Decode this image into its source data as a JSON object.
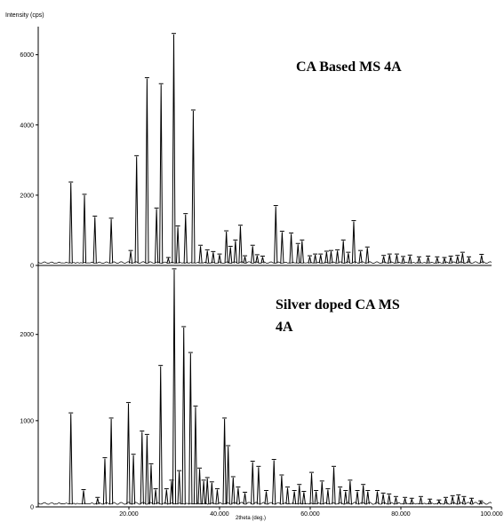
{
  "y_axis_label": "Intensity (cps)",
  "x_axis_label": "2theta (deg.)",
  "chart_data": [
    {
      "type": "line",
      "label": "CA Based MS 4A",
      "x_range": [
        0,
        100
      ],
      "y_range": [
        0,
        6800
      ],
      "y_ticks": [
        "0",
        "2000",
        "4000",
        "6000"
      ],
      "peaks": [
        {
          "x": 7.2,
          "y": 2350
        },
        {
          "x": 10.2,
          "y": 2000
        },
        {
          "x": 12.5,
          "y": 1380
        },
        {
          "x": 16.1,
          "y": 1320
        },
        {
          "x": 20.4,
          "y": 400
        },
        {
          "x": 21.7,
          "y": 3100
        },
        {
          "x": 24.0,
          "y": 5320
        },
        {
          "x": 26.1,
          "y": 1610
        },
        {
          "x": 27.1,
          "y": 5150
        },
        {
          "x": 28.7,
          "y": 200
        },
        {
          "x": 29.9,
          "y": 6580
        },
        {
          "x": 30.8,
          "y": 1100
        },
        {
          "x": 32.5,
          "y": 1450
        },
        {
          "x": 34.2,
          "y": 4400
        },
        {
          "x": 35.8,
          "y": 550
        },
        {
          "x": 37.3,
          "y": 420
        },
        {
          "x": 38.6,
          "y": 370
        },
        {
          "x": 40.0,
          "y": 300
        },
        {
          "x": 41.5,
          "y": 960
        },
        {
          "x": 42.4,
          "y": 520
        },
        {
          "x": 43.5,
          "y": 700
        },
        {
          "x": 44.6,
          "y": 1120
        },
        {
          "x": 45.6,
          "y": 250
        },
        {
          "x": 47.3,
          "y": 550
        },
        {
          "x": 48.3,
          "y": 280
        },
        {
          "x": 49.5,
          "y": 240
        },
        {
          "x": 52.4,
          "y": 1680
        },
        {
          "x": 53.8,
          "y": 950
        },
        {
          "x": 55.8,
          "y": 900
        },
        {
          "x": 57.3,
          "y": 600
        },
        {
          "x": 58.2,
          "y": 700
        },
        {
          "x": 59.9,
          "y": 250
        },
        {
          "x": 61.1,
          "y": 300
        },
        {
          "x": 62.3,
          "y": 300
        },
        {
          "x": 63.6,
          "y": 380
        },
        {
          "x": 64.6,
          "y": 400
        },
        {
          "x": 66.0,
          "y": 420
        },
        {
          "x": 67.3,
          "y": 700
        },
        {
          "x": 68.4,
          "y": 350
        },
        {
          "x": 69.6,
          "y": 1250
        },
        {
          "x": 71.1,
          "y": 400
        },
        {
          "x": 72.6,
          "y": 500
        },
        {
          "x": 76.2,
          "y": 260
        },
        {
          "x": 77.5,
          "y": 300
        },
        {
          "x": 79.1,
          "y": 300
        },
        {
          "x": 80.5,
          "y": 230
        },
        {
          "x": 82.0,
          "y": 270
        },
        {
          "x": 84.0,
          "y": 220
        },
        {
          "x": 86.0,
          "y": 240
        },
        {
          "x": 88.0,
          "y": 220
        },
        {
          "x": 89.6,
          "y": 200
        },
        {
          "x": 91.0,
          "y": 240
        },
        {
          "x": 92.5,
          "y": 260
        },
        {
          "x": 93.6,
          "y": 350
        },
        {
          "x": 95.0,
          "y": 220
        },
        {
          "x": 97.8,
          "y": 290
        }
      ]
    },
    {
      "type": "line",
      "label": "Silver doped CA MS 4A",
      "x_range": [
        0,
        100
      ],
      "y_range": [
        0,
        2800
      ],
      "x_ticks": [
        "20.000",
        "40.000",
        "60.000",
        "80.000",
        "100.000"
      ],
      "y_ticks": [
        "0",
        "1000",
        "2000"
      ],
      "peaks": [
        {
          "x": 7.2,
          "y": 1080
        },
        {
          "x": 10.0,
          "y": 190
        },
        {
          "x": 13.1,
          "y": 100
        },
        {
          "x": 14.7,
          "y": 560
        },
        {
          "x": 16.1,
          "y": 1020
        },
        {
          "x": 19.9,
          "y": 1200
        },
        {
          "x": 21.0,
          "y": 600
        },
        {
          "x": 22.9,
          "y": 870
        },
        {
          "x": 24.0,
          "y": 830
        },
        {
          "x": 24.9,
          "y": 490
        },
        {
          "x": 25.9,
          "y": 200
        },
        {
          "x": 27.0,
          "y": 1630
        },
        {
          "x": 28.3,
          "y": 200
        },
        {
          "x": 29.4,
          "y": 300
        },
        {
          "x": 30.0,
          "y": 2750
        },
        {
          "x": 31.1,
          "y": 410
        },
        {
          "x": 32.1,
          "y": 2080
        },
        {
          "x": 33.6,
          "y": 1780
        },
        {
          "x": 34.7,
          "y": 1160
        },
        {
          "x": 35.6,
          "y": 440
        },
        {
          "x": 36.5,
          "y": 300
        },
        {
          "x": 37.3,
          "y": 330
        },
        {
          "x": 38.3,
          "y": 280
        },
        {
          "x": 39.5,
          "y": 200
        },
        {
          "x": 41.1,
          "y": 1020
        },
        {
          "x": 41.9,
          "y": 700
        },
        {
          "x": 43.0,
          "y": 340
        },
        {
          "x": 44.1,
          "y": 220
        },
        {
          "x": 45.6,
          "y": 160
        },
        {
          "x": 47.3,
          "y": 520
        },
        {
          "x": 48.6,
          "y": 460
        },
        {
          "x": 50.3,
          "y": 180
        },
        {
          "x": 52.0,
          "y": 540
        },
        {
          "x": 53.7,
          "y": 360
        },
        {
          "x": 55.0,
          "y": 220
        },
        {
          "x": 56.5,
          "y": 180
        },
        {
          "x": 57.6,
          "y": 250
        },
        {
          "x": 58.6,
          "y": 170
        },
        {
          "x": 60.3,
          "y": 390
        },
        {
          "x": 61.3,
          "y": 180
        },
        {
          "x": 62.6,
          "y": 290
        },
        {
          "x": 63.9,
          "y": 200
        },
        {
          "x": 65.2,
          "y": 460
        },
        {
          "x": 66.6,
          "y": 220
        },
        {
          "x": 67.8,
          "y": 180
        },
        {
          "x": 68.8,
          "y": 300
        },
        {
          "x": 70.4,
          "y": 180
        },
        {
          "x": 71.7,
          "y": 250
        },
        {
          "x": 72.7,
          "y": 180
        },
        {
          "x": 74.8,
          "y": 180
        },
        {
          "x": 76.1,
          "y": 150
        },
        {
          "x": 77.4,
          "y": 140
        },
        {
          "x": 78.9,
          "y": 110
        },
        {
          "x": 80.9,
          "y": 100
        },
        {
          "x": 82.4,
          "y": 90
        },
        {
          "x": 84.4,
          "y": 110
        },
        {
          "x": 86.4,
          "y": 80
        },
        {
          "x": 88.4,
          "y": 70
        },
        {
          "x": 89.9,
          "y": 100
        },
        {
          "x": 91.4,
          "y": 120
        },
        {
          "x": 92.7,
          "y": 130
        },
        {
          "x": 93.9,
          "y": 110
        },
        {
          "x": 95.6,
          "y": 90
        },
        {
          "x": 97.6,
          "y": 60
        }
      ]
    }
  ]
}
